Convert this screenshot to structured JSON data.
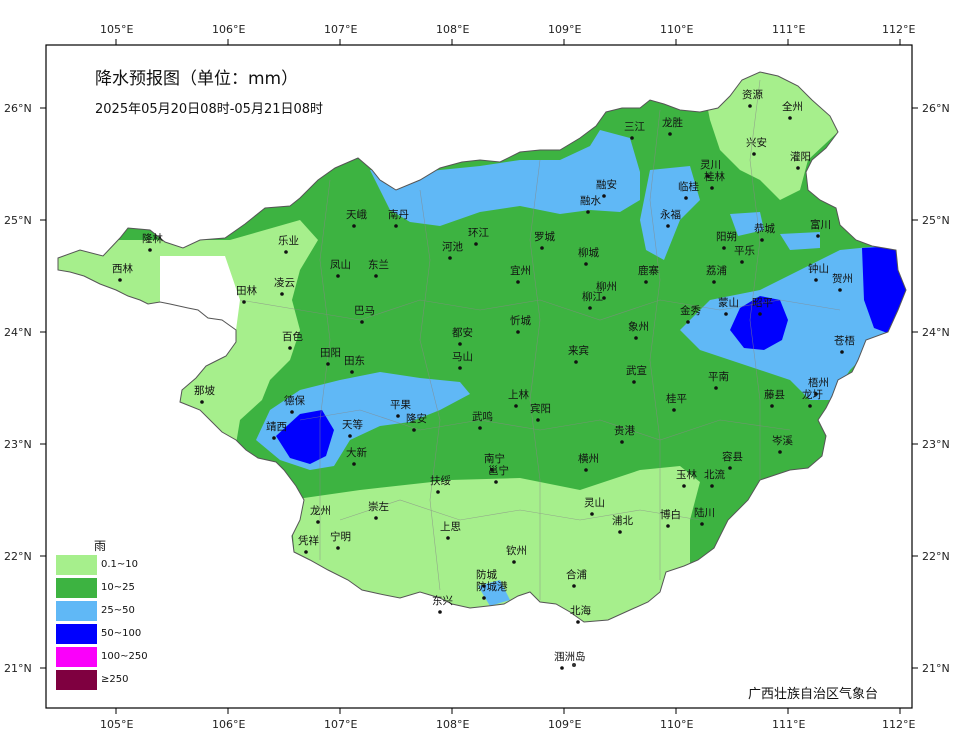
{
  "title": "降水预报图（单位：mm）",
  "subtitle": "2025年05月20日08时-05月21日08时",
  "credit": "广西壮族自治区气象台",
  "axes": {
    "lon_labels": [
      "105°E",
      "106°E",
      "107°E",
      "108°E",
      "109°E",
      "110°E",
      "111°E",
      "112°E"
    ],
    "lat_labels": [
      "26°N",
      "25°N",
      "24°N",
      "23°N",
      "22°N",
      "21°N"
    ]
  },
  "legend": {
    "title": "雨",
    "items": [
      {
        "label": "0.1~10",
        "color": "#a6ef8c"
      },
      {
        "label": "10~25",
        "color": "#3db341"
      },
      {
        "label": "25~50",
        "color": "#60b8f6"
      },
      {
        "label": "50~100",
        "color": "#0000fe"
      },
      {
        "label": "100~250",
        "color": "#fa00fa"
      },
      {
        "label": "≥250",
        "color": "#7f0040"
      }
    ]
  },
  "cities": [
    {
      "name": "资源"
    },
    {
      "name": "全州"
    },
    {
      "name": "三江"
    },
    {
      "name": "龙胜"
    },
    {
      "name": "兴安"
    },
    {
      "name": "灌阳"
    },
    {
      "name": "灵川"
    },
    {
      "name": "桂林"
    },
    {
      "name": "临桂"
    },
    {
      "name": "融安"
    },
    {
      "name": "融水"
    },
    {
      "name": "永福"
    },
    {
      "name": "阳朔"
    },
    {
      "name": "恭城"
    },
    {
      "name": "平乐"
    },
    {
      "name": "富川"
    },
    {
      "name": "天峨"
    },
    {
      "name": "南丹"
    },
    {
      "name": "环江"
    },
    {
      "name": "罗城"
    },
    {
      "name": "河池"
    },
    {
      "name": "柳城"
    },
    {
      "name": "隆林"
    },
    {
      "name": "西林"
    },
    {
      "name": "乐业"
    },
    {
      "name": "凤山"
    },
    {
      "name": "东兰"
    },
    {
      "name": "凌云"
    },
    {
      "name": "田林"
    },
    {
      "name": "巴马"
    },
    {
      "name": "宜州"
    },
    {
      "name": "柳州"
    },
    {
      "name": "柳江"
    },
    {
      "name": "鹿寨"
    },
    {
      "name": "荔浦"
    },
    {
      "name": "钟山"
    },
    {
      "name": "贺州"
    },
    {
      "name": "百色"
    },
    {
      "name": "都安"
    },
    {
      "name": "忻城"
    },
    {
      "name": "象州"
    },
    {
      "name": "金秀"
    },
    {
      "name": "蒙山"
    },
    {
      "name": "昭平"
    },
    {
      "name": "田阳"
    },
    {
      "name": "田东"
    },
    {
      "name": "马山"
    },
    {
      "name": "来宾"
    },
    {
      "name": "武宣"
    },
    {
      "name": "苍梧"
    },
    {
      "name": "平南"
    },
    {
      "name": "梧州"
    },
    {
      "name": "那坡"
    },
    {
      "name": "德保"
    },
    {
      "name": "平果"
    },
    {
      "name": "上林"
    },
    {
      "name": "藤县"
    },
    {
      "name": "龙圩"
    },
    {
      "name": "靖西"
    },
    {
      "name": "天等"
    },
    {
      "name": "隆安"
    },
    {
      "name": "武鸣"
    },
    {
      "name": "宾阳"
    },
    {
      "name": "桂平"
    },
    {
      "name": "大新"
    },
    {
      "name": "贵港"
    },
    {
      "name": "岑溪"
    },
    {
      "name": "南宁"
    },
    {
      "name": "邕宁"
    },
    {
      "name": "横州"
    },
    {
      "name": "扶绥"
    },
    {
      "name": "玉林"
    },
    {
      "name": "北流"
    },
    {
      "name": "容县"
    },
    {
      "name": "崇左"
    },
    {
      "name": "龙州"
    },
    {
      "name": "灵山"
    },
    {
      "name": "宁明"
    },
    {
      "name": "博白"
    },
    {
      "name": "陆川"
    },
    {
      "name": "浦北"
    },
    {
      "name": "上思"
    },
    {
      "name": "凭祥"
    },
    {
      "name": "钦州"
    },
    {
      "name": "防城"
    },
    {
      "name": "防城港"
    },
    {
      "name": "合浦"
    },
    {
      "name": "东兴"
    },
    {
      "name": "北海"
    },
    {
      "name": "涠洲岛"
    }
  ]
}
